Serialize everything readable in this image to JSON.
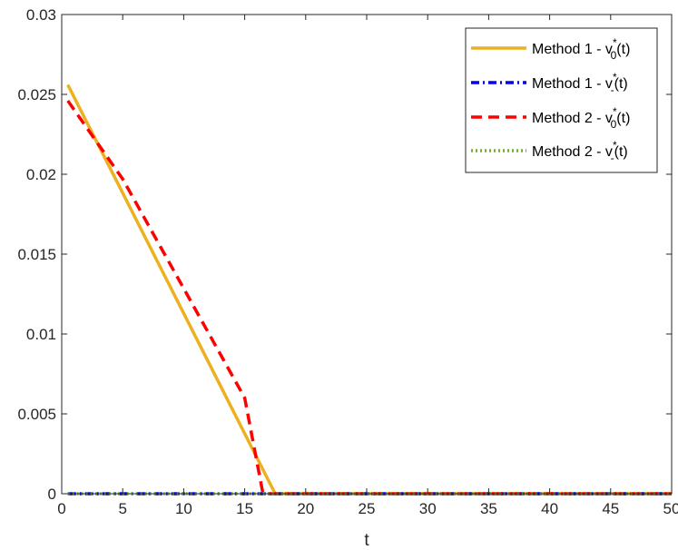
{
  "chart_data": {
    "type": "line",
    "title": "",
    "xlabel": "t",
    "ylabel": "",
    "xlim": [
      0,
      50
    ],
    "ylim": [
      0,
      0.03
    ],
    "xticks": [
      0,
      5,
      10,
      15,
      20,
      25,
      30,
      35,
      40,
      45,
      50
    ],
    "xtick_labels": [
      "0",
      "5",
      "10",
      "15",
      "20",
      "25",
      "30",
      "35",
      "40",
      "45",
      "50"
    ],
    "yticks": [
      0,
      0.005,
      0.01,
      0.015,
      0.02,
      0.025,
      0.03
    ],
    "ytick_labels": [
      "0",
      "0.005",
      "0.01",
      "0.015",
      "0.02",
      "0.025",
      "0.03"
    ],
    "grid": false,
    "legend_position": "top-right",
    "series": [
      {
        "name": "Method 1 - v*0(t)",
        "legend": {
          "base": "Method 1 - v",
          "sup": "*",
          "sub": "0",
          "tail": "(t)"
        },
        "color": "#EDB120",
        "style": "solid",
        "x": [
          0.5,
          17.5,
          50
        ],
        "y": [
          0.0256,
          0,
          0
        ]
      },
      {
        "name": "Method 1 - v*-(t)",
        "legend": {
          "base": "Method 1 - v",
          "sup": "*",
          "sub": "-",
          "tail": "(t)"
        },
        "color": "#0000FF",
        "style": "dashdot",
        "x": [
          0.5,
          50
        ],
        "y": [
          0,
          0
        ]
      },
      {
        "name": "Method 2 - v*0(t)",
        "legend": {
          "base": "Method 2 - v",
          "sup": "*",
          "sub": "0",
          "tail": "(t)"
        },
        "color": "#FF0000",
        "style": "dashed",
        "x": [
          0.5,
          5,
          15,
          16.5,
          50
        ],
        "y": [
          0.0246,
          0.0197,
          0.006,
          0,
          0
        ]
      },
      {
        "name": "Method 2 - v*-(t)",
        "legend": {
          "base": "Method 2 - v",
          "sup": "*",
          "sub": "-",
          "tail": "(t)"
        },
        "color": "#77AC30",
        "style": "dotted",
        "x": [
          0.5,
          50
        ],
        "y": [
          0,
          0
        ]
      }
    ]
  }
}
